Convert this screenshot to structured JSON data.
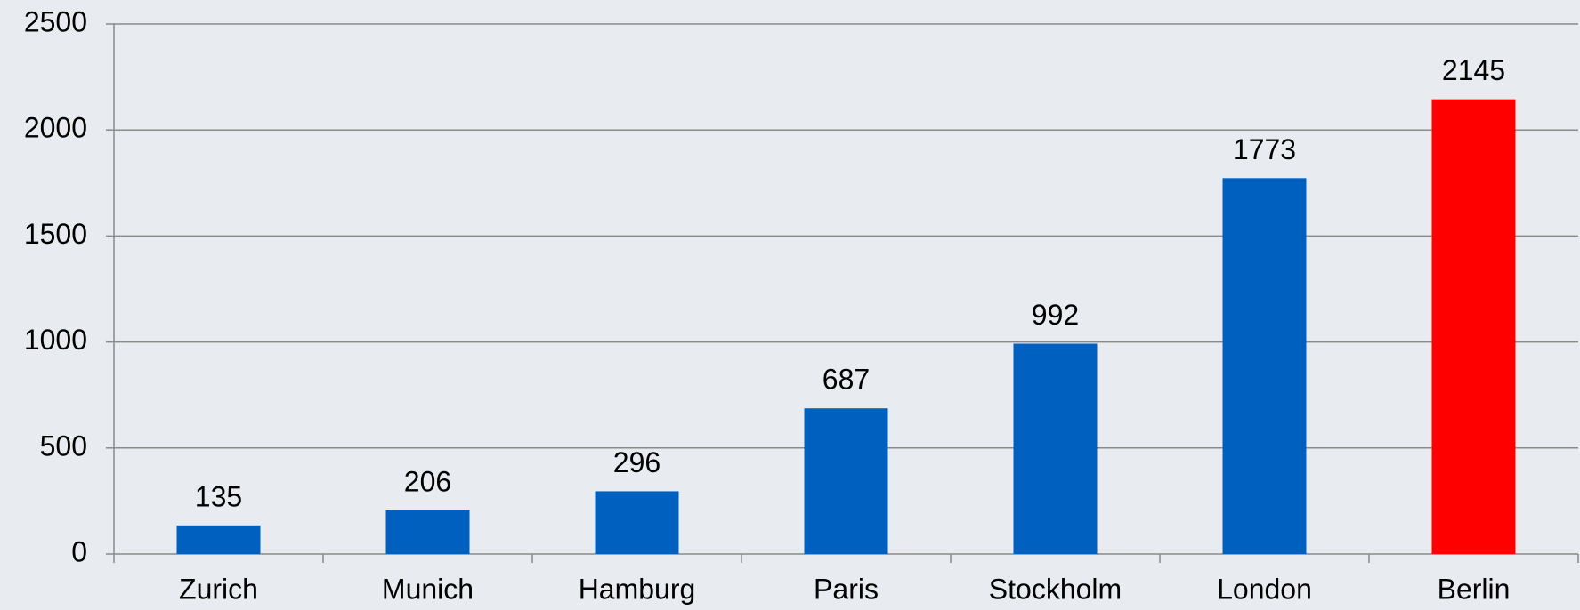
{
  "chart_data": {
    "type": "bar",
    "categories": [
      "Zurich",
      "Munich",
      "Hamburg",
      "Paris",
      "Stockholm",
      "London",
      "Berlin"
    ],
    "values": [
      135,
      206,
      296,
      687,
      992,
      1773,
      2145
    ],
    "colors": [
      "#0060c0",
      "#0060c0",
      "#0060c0",
      "#0060c0",
      "#0060c0",
      "#0060c0",
      "#ff0000"
    ],
    "ylim": [
      0,
      2500
    ],
    "yticks": [
      0,
      500,
      1000,
      1500,
      2000,
      2500
    ],
    "grid": true
  }
}
